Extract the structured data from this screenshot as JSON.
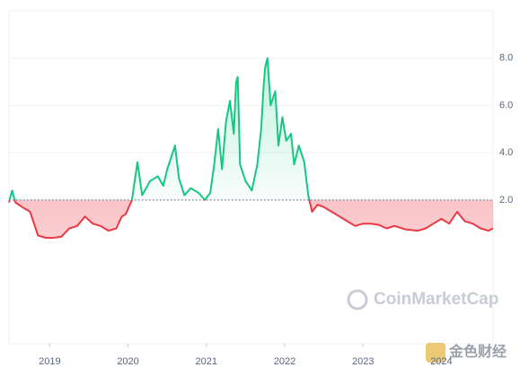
{
  "chart_data": {
    "type": "line",
    "x": [
      2018.48,
      2018.52,
      2018.56,
      2018.65,
      2018.75,
      2018.85,
      2018.95,
      2019.05,
      2019.15,
      2019.25,
      2019.35,
      2019.45,
      2019.55,
      2019.65,
      2019.75,
      2019.85,
      2019.92,
      2019.97,
      2020.05,
      2020.12,
      2020.18,
      2020.28,
      2020.38,
      2020.45,
      2020.5,
      2020.6,
      2020.65,
      2020.72,
      2020.8,
      2020.9,
      2020.98,
      2021.05,
      2021.1,
      2021.15,
      2021.2,
      2021.25,
      2021.3,
      2021.35,
      2021.38,
      2021.4,
      2021.43,
      2021.5,
      2021.58,
      2021.65,
      2021.7,
      2021.73,
      2021.75,
      2021.78,
      2021.82,
      2021.88,
      2021.92,
      2021.97,
      2022.02,
      2022.08,
      2022.12,
      2022.18,
      2022.25,
      2022.3,
      2022.35,
      2022.42,
      2022.5,
      2022.6,
      2022.7,
      2022.8,
      2022.9,
      2023.0,
      2023.1,
      2023.2,
      2023.3,
      2023.4,
      2023.55,
      2023.7,
      2023.8,
      2023.9,
      2024.0,
      2024.1,
      2024.2,
      2024.3,
      2024.4,
      2024.5,
      2024.6,
      2024.66
    ],
    "values": [
      1.9,
      2.4,
      1.9,
      1.7,
      1.5,
      0.5,
      0.4,
      0.4,
      0.45,
      0.8,
      0.9,
      1.3,
      1.0,
      0.9,
      0.7,
      0.8,
      1.3,
      1.4,
      2.0,
      3.6,
      2.2,
      2.8,
      3.0,
      2.6,
      3.3,
      4.3,
      2.9,
      2.2,
      2.5,
      2.3,
      2.0,
      2.3,
      3.5,
      5.0,
      3.3,
      5.3,
      6.2,
      4.8,
      7.0,
      7.2,
      3.5,
      2.8,
      2.4,
      3.5,
      5.0,
      6.8,
      7.6,
      8.0,
      6.0,
      6.6,
      4.3,
      5.5,
      4.5,
      4.8,
      3.5,
      4.3,
      3.6,
      2.2,
      1.5,
      1.8,
      1.7,
      1.5,
      1.3,
      1.1,
      0.9,
      1.0,
      1.0,
      0.95,
      0.8,
      0.9,
      0.75,
      0.7,
      0.8,
      1.0,
      1.2,
      1.0,
      1.5,
      1.1,
      1.0,
      0.8,
      0.7,
      0.8
    ],
    "baseline": 2.0,
    "color_above": "#16c784",
    "color_below": "#ea3943",
    "xlim": [
      2018.48,
      2024.66
    ],
    "xticks": [
      2019,
      2020,
      2021,
      2022,
      2023,
      2024
    ],
    "ylim": [
      -4,
      10
    ],
    "yticks": [
      {
        "value": 2,
        "label": "2.0"
      },
      {
        "value": 4,
        "label": "4.0"
      },
      {
        "value": 6,
        "label": "6.0"
      },
      {
        "value": 8,
        "label": "8.0"
      }
    ],
    "grid": true,
    "watermark": "CoinMarketCap",
    "source_watermark": "金色财经"
  }
}
